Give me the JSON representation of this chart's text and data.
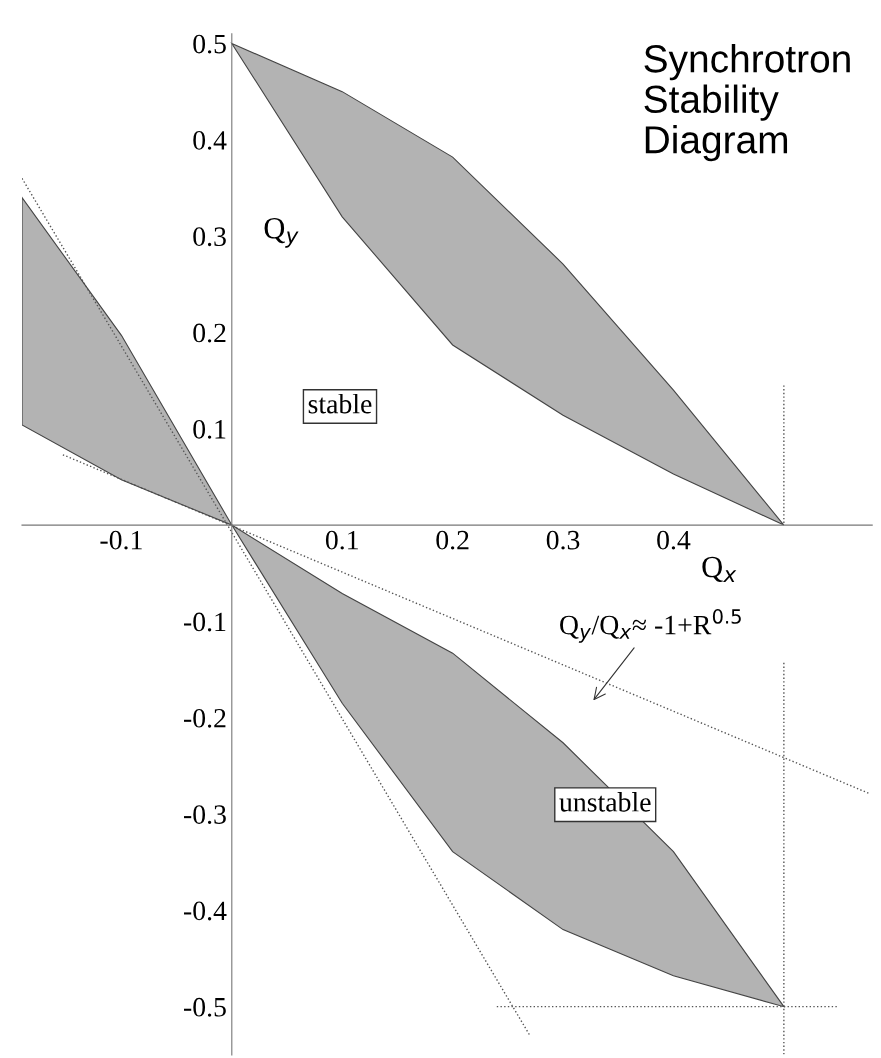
{
  "chart_data": {
    "type": "area",
    "title": "Synchrotron Stability Diagram",
    "xlim": [
      -0.19,
      0.58
    ],
    "ylim": [
      -0.55,
      0.51
    ],
    "xticks": [
      -0.1,
      0.1,
      0.2,
      0.3,
      0.4
    ],
    "yticks": [
      -0.5,
      -0.4,
      -0.3,
      -0.2,
      -0.1,
      0.1,
      0.2,
      0.3,
      0.4,
      0.5
    ],
    "grid": false,
    "legend": false,
    "series": [
      {
        "color": "#b3b3b3",
        "x": [
          0,
          0.1,
          0.2,
          0.3,
          0.4,
          0.5,
          0.4,
          0.3,
          0.2,
          0.1
        ],
        "values": [
          0.5,
          0.45,
          0.382,
          0.271,
          0.14,
          0,
          0.053,
          0.114,
          0.187,
          0.32
        ]
      },
      {
        "color": "#b3b3b3",
        "x": [
          -0.19,
          -0.1,
          0,
          -0.1,
          -0.19
        ],
        "values": [
          0.34,
          0.197,
          0,
          0.047,
          0.104
        ]
      },
      {
        "color": "#b3b3b3",
        "x": [
          0,
          0.1,
          0.2,
          0.3,
          0.4,
          0.5,
          0.4,
          0.3,
          0.2,
          0.1
        ],
        "values": [
          0,
          -0.071,
          -0.133,
          -0.226,
          -0.339,
          -0.5,
          -0.468,
          -0.42,
          -0.339,
          -0.185
        ]
      },
      {
        "type": "line",
        "color": "#555555",
        "line_style": "dotted",
        "x": [
          -0.19,
          0.27
        ],
        "values": [
          0.36,
          -0.53
        ]
      },
      {
        "type": "line",
        "color": "#555555",
        "line_style": "dotted",
        "x": [
          -0.153,
          0.578
        ],
        "values": [
          0.073,
          -0.279
        ]
      },
      {
        "type": "line",
        "color": "#555555",
        "line_style": "dotted",
        "x": [
          0.5,
          0.5
        ],
        "values": [
          0.145,
          0
        ]
      },
      {
        "type": "line",
        "color": "#555555",
        "line_style": "dotted",
        "x": [
          0.5,
          0.5
        ],
        "values": [
          -0.143,
          -0.55
        ]
      },
      {
        "type": "line",
        "color": "#555555",
        "line_style": "dotted",
        "x": [
          0.24,
          0.55
        ],
        "values": [
          -0.5,
          -0.5
        ]
      }
    ],
    "annotations": [
      "Q$_{y}$",
      "Q$_{x}$",
      "stable",
      "unstable",
      "Q$_{y}$/Q$_{x}$≈ -1+R$^{0.5}$"
    ]
  }
}
